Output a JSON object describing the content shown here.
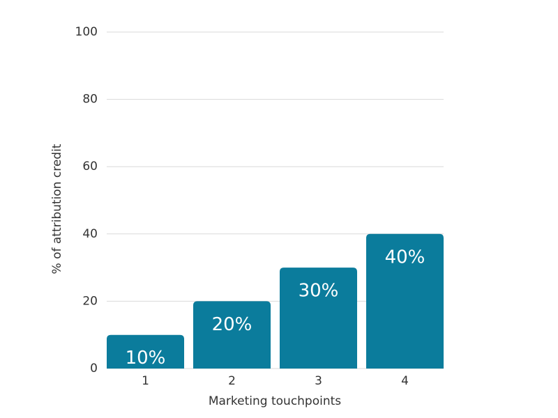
{
  "chart_data": {
    "type": "bar",
    "x_label": "Marketing touchpoints",
    "y_label": "% of attribution credit",
    "categories": [
      "1",
      "2",
      "3",
      "4"
    ],
    "values": [
      10,
      20,
      30,
      40
    ],
    "value_labels": [
      "10%",
      "20%",
      "30%",
      "40%"
    ],
    "color": "#0b7c9c",
    "ylim": [
      0,
      100
    ],
    "yticks": [
      0,
      20,
      40,
      60,
      80,
      100
    ],
    "grid": true
  }
}
